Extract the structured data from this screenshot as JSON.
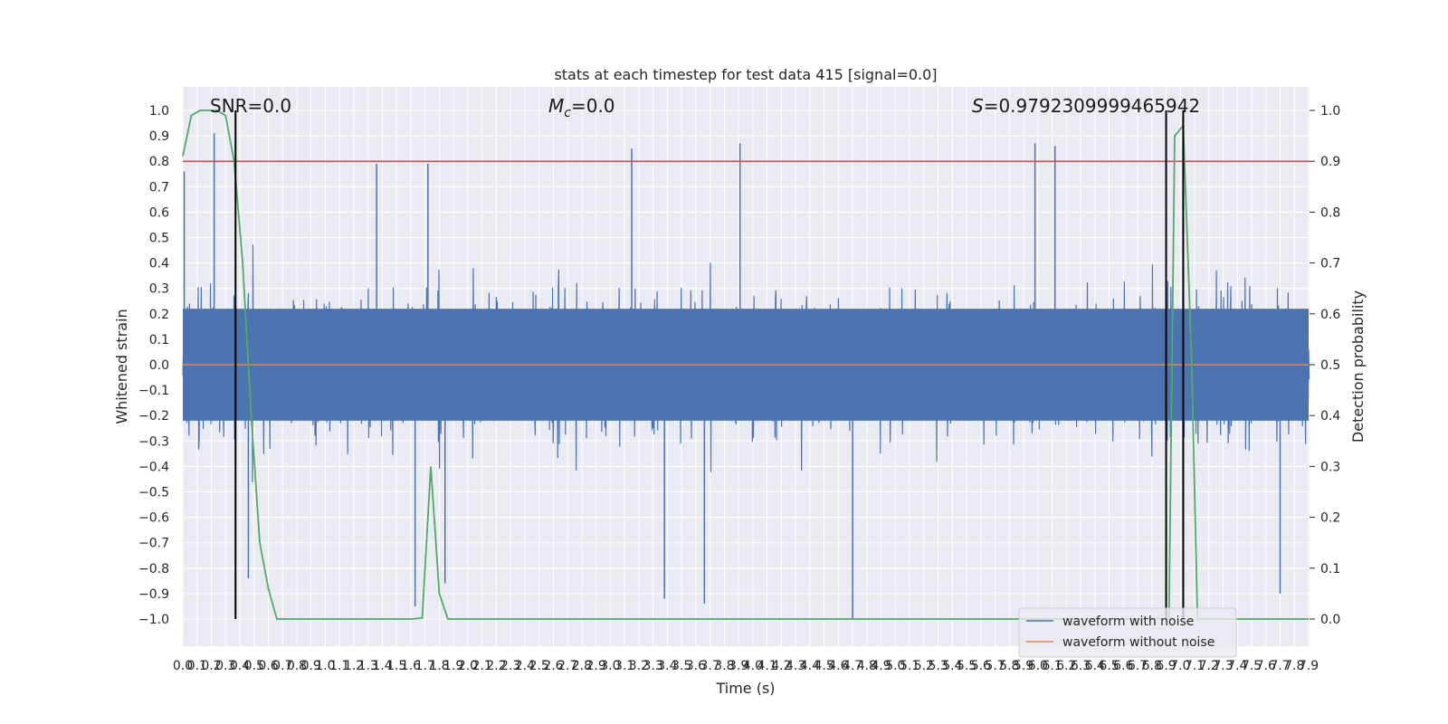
{
  "chart_data": {
    "type": "line",
    "title": "stats at each timestep for test data 415 [signal=0.0]",
    "xlabel": "Time (s)",
    "ylabel": "Whitened strain",
    "ylabel_right": "Detection probability",
    "xlim": [
      0.0,
      7.9
    ],
    "ylim": [
      -1.0,
      1.0
    ],
    "ylim_right": [
      0.0,
      1.0
    ],
    "x_ticks": [
      "0.0",
      "0.1",
      "0.2",
      "0.3",
      "0.4",
      "0.5",
      "0.6",
      "0.7",
      "0.8",
      "0.9",
      "1.0",
      "1.1",
      "1.2",
      "1.3",
      "1.4",
      "1.5",
      "1.6",
      "1.7",
      "1.8",
      "1.9",
      "2.0",
      "2.1",
      "2.2",
      "2.3",
      "2.4",
      "2.5",
      "2.6",
      "2.7",
      "2.8",
      "2.9",
      "3.0",
      "3.1",
      "3.2",
      "3.3",
      "3.4",
      "3.5",
      "3.6",
      "3.7",
      "3.8",
      "3.9",
      "4.0",
      "4.1",
      "4.2",
      "4.3",
      "4.4",
      "4.5",
      "4.6",
      "4.7",
      "4.8",
      "4.9",
      "5.0",
      "5.1",
      "5.2",
      "5.3",
      "5.4",
      "5.5",
      "5.6",
      "5.7",
      "5.8",
      "5.9",
      "6.0",
      "6.1",
      "6.2",
      "6.3",
      "6.4",
      "6.5",
      "6.6",
      "6.7",
      "6.8",
      "6.9",
      "7.0",
      "7.1",
      "7.2",
      "7.3",
      "7.4",
      "7.5",
      "7.6",
      "7.7",
      "7.8",
      "7.9"
    ],
    "y_ticks_left": [
      "1.0",
      "0.9",
      "0.8",
      "0.7",
      "0.6",
      "0.5",
      "0.4",
      "0.3",
      "0.2",
      "0.1",
      "0.0",
      "−0.1",
      "−0.2",
      "−0.3",
      "−0.4",
      "−0.5",
      "−0.6",
      "−0.7",
      "−0.8",
      "−0.9",
      "−1.0"
    ],
    "y_ticks_right": [
      "1.0",
      "0.9",
      "0.8",
      "0.7",
      "0.6",
      "0.5",
      "0.4",
      "0.3",
      "0.2",
      "0.1",
      "0.0"
    ],
    "annotations": {
      "snr": "SNR=0.0",
      "mc_symbol": "M",
      "mc_sub": "c",
      "mc_value": "=0.0",
      "s_symbol": "S",
      "s_value": "=0.9792309999465942"
    },
    "threshold": {
      "value_right": 0.9,
      "color": "#c44e52"
    },
    "series": [
      {
        "name": "waveform with noise",
        "color": "#4c72b0",
        "description_values": "dense noise, |strain| mostly < 0.5",
        "peaks": [
          {
            "t": 0.01,
            "v": 0.76
          },
          {
            "t": 0.22,
            "v": 0.91
          },
          {
            "t": 0.37,
            "v": 0.94
          },
          {
            "t": 1.36,
            "v": 0.79
          },
          {
            "t": 1.72,
            "v": 0.79
          },
          {
            "t": 3.15,
            "v": 0.85
          },
          {
            "t": 3.91,
            "v": 0.87
          },
          {
            "t": 5.98,
            "v": 0.87
          },
          {
            "t": 6.12,
            "v": 0.86
          },
          {
            "t": 0.46,
            "v": -0.84
          },
          {
            "t": 1.63,
            "v": -0.95
          },
          {
            "t": 1.84,
            "v": -0.86
          },
          {
            "t": 3.38,
            "v": -0.92
          },
          {
            "t": 3.66,
            "v": -0.94
          },
          {
            "t": 4.7,
            "v": -1.0
          },
          {
            "t": 7.7,
            "v": -0.9
          }
        ]
      },
      {
        "name": "waveform without noise",
        "color": "#dd8452",
        "x": [
          0.0,
          7.9
        ],
        "y": [
          0.0,
          0.0
        ]
      },
      {
        "name": "detection probability",
        "color": "#55a868",
        "axis": "right",
        "x": [
          0.0,
          0.06,
          0.12,
          0.18,
          0.24,
          0.3,
          0.36,
          0.42,
          0.48,
          0.54,
          0.6,
          0.66,
          0.72,
          1.2,
          1.6,
          1.68,
          1.74,
          1.8,
          1.86,
          1.92,
          2.0,
          4.0,
          6.0,
          6.8,
          6.88,
          6.92,
          6.96,
          7.02,
          7.08,
          7.12,
          7.2,
          7.5,
          7.9
        ],
        "y": [
          0.91,
          0.99,
          1.0,
          1.0,
          1.0,
          0.99,
          0.9,
          0.7,
          0.4,
          0.15,
          0.06,
          0.0,
          0.0,
          0.0,
          0.0,
          0.002,
          0.3,
          0.05,
          0.0,
          0.0,
          0.0,
          0.0,
          0.0,
          0.0,
          0.0,
          0.0,
          0.95,
          0.97,
          0.5,
          0.0,
          0.0,
          0.0,
          0.0
        ]
      }
    ],
    "vertical_markers": {
      "t": [
        0.37,
        6.9,
        7.02
      ],
      "color": "#000000"
    },
    "legend": {
      "position": "lower-right",
      "entries": [
        {
          "label": "waveform with noise",
          "color": "#4c72b0"
        },
        {
          "label": "waveform without noise",
          "color": "#dd8452"
        }
      ]
    },
    "grid": true
  }
}
